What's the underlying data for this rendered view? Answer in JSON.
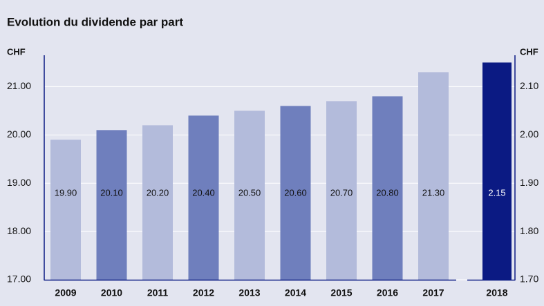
{
  "chart_data": {
    "type": "bar",
    "title": "Evolution du dividende par part",
    "ylabel": "CHF",
    "y2label": "CHF",
    "categories": [
      "2009",
      "2010",
      "2011",
      "2012",
      "2013",
      "2014",
      "2015",
      "2016",
      "2017",
      "2018"
    ],
    "series": [
      {
        "values": [
          19.9,
          20.1,
          20.2,
          20.4,
          20.5,
          20.6,
          20.7,
          20.8,
          21.3,
          null
        ],
        "value_labels": [
          "19.90",
          "20.10",
          "20.20",
          "20.40",
          "20.50",
          "20.60",
          "20.70",
          "20.80",
          "21.30",
          null
        ],
        "colors": [
          "#b3bbdb",
          "#6f7fbd",
          "#b3bbdb",
          "#6f7fbd",
          "#b3bbdb",
          "#6f7fbd",
          "#b3bbdb",
          "#6f7fbd",
          "#b3bbdb",
          null
        ]
      },
      {
        "values": [
          null,
          null,
          null,
          null,
          null,
          null,
          null,
          null,
          null,
          2.15
        ],
        "value_labels": [
          null,
          null,
          null,
          null,
          null,
          null,
          null,
          null,
          null,
          "2.15"
        ],
        "axis": "y2",
        "color": "#0b1a83"
      }
    ],
    "ylim": [
      17,
      21.65
    ],
    "yticks": [
      {
        "value": 17,
        "label": "17.00"
      },
      {
        "value": 18,
        "label": "18.00"
      },
      {
        "value": 19,
        "label": "19.00"
      },
      {
        "value": 20,
        "label": "20.00"
      },
      {
        "value": 21,
        "label": "21.00"
      }
    ],
    "y2lim": [
      1.7,
      2.165
    ],
    "y2ticks": [
      {
        "value": 1.7,
        "label": "1.70"
      },
      {
        "value": 1.8,
        "label": "1.80"
      },
      {
        "value": 1.9,
        "label": "1.90"
      },
      {
        "value": 2.0,
        "label": "2.00"
      },
      {
        "value": 2.1,
        "label": "2.10"
      }
    ],
    "grid": true
  }
}
